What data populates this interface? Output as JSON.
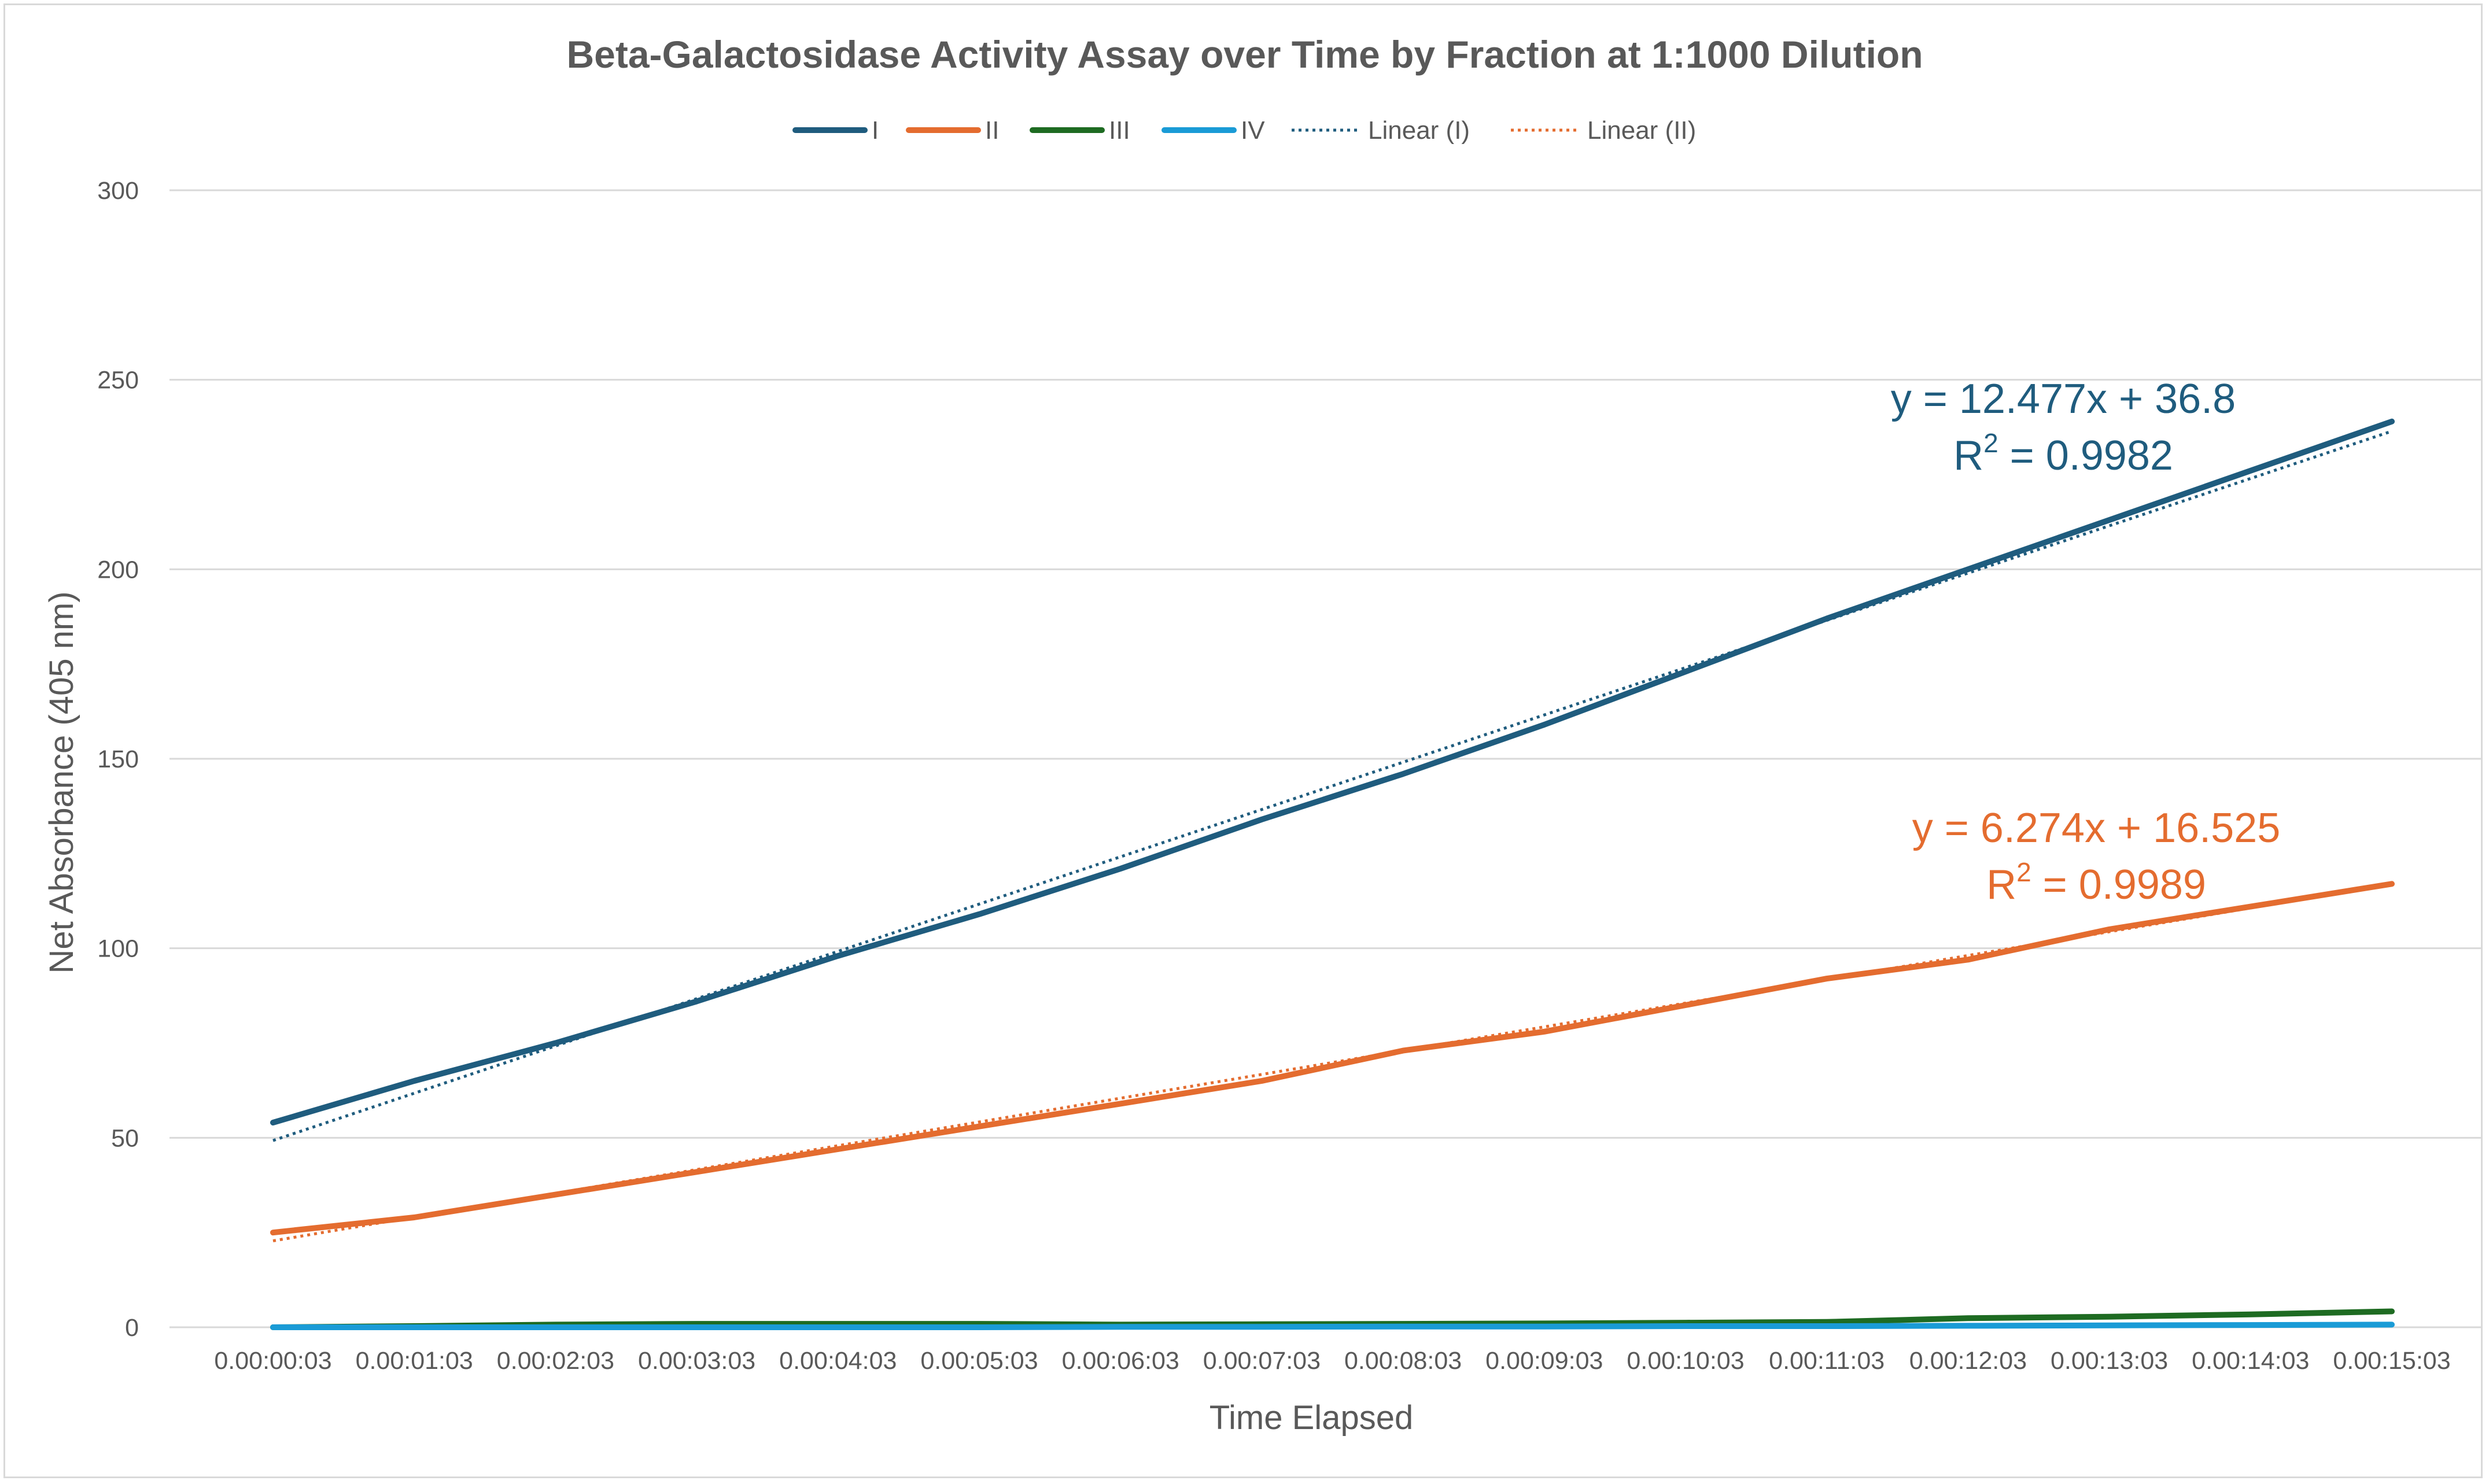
{
  "chart_data": {
    "type": "line",
    "title": "Beta-Galactosidase Activity Assay over Time by Fraction at 1:1000 Dilution",
    "xlabel": "Time Elapsed",
    "ylabel": "Net Absorbance (405 nm)",
    "ylim": [
      0,
      300
    ],
    "yticks": [
      "0",
      "50",
      "100",
      "150",
      "200",
      "250",
      "300"
    ],
    "grid": true,
    "legend_position": "top",
    "categories": [
      "0.00:00:03",
      "0.00:01:03",
      "0.00:02:03",
      "0.00:03:03",
      "0.00:04:03",
      "0.00:05:03",
      "0.00:06:03",
      "0.00:07:03",
      "0.00:08:03",
      "0.00:09:03",
      "0.00:10:03",
      "0.00:11:03",
      "0.00:12:03",
      "0.00:13:03",
      "0.00:14:03",
      "0.00:15:03"
    ],
    "series": [
      {
        "name": "I",
        "color": "#1f5c7e",
        "values": [
          54,
          65,
          75,
          86,
          98,
          109,
          121,
          134,
          146,
          159,
          173,
          187,
          200,
          213,
          226,
          239
        ]
      },
      {
        "name": "II",
        "color": "#e46c2f",
        "values": [
          25,
          29,
          35,
          41,
          47,
          53,
          59,
          65,
          73,
          78,
          85,
          92,
          97,
          105,
          111,
          117
        ]
      },
      {
        "name": "III",
        "color": "#1e6b22",
        "values": [
          0,
          0.3,
          0.7,
          0.9,
          0.9,
          0.9,
          0.7,
          0.8,
          0.9,
          1.0,
          1.2,
          1.4,
          2.4,
          2.8,
          3.4,
          4.2
        ]
      },
      {
        "name": "IV",
        "color": "#1a9bd6",
        "values": [
          0,
          0,
          0,
          0,
          0,
          0,
          0.1,
          0.1,
          0.2,
          0.2,
          0.3,
          0.3,
          0.4,
          0.5,
          0.6,
          0.7
        ]
      }
    ],
    "trendlines": [
      {
        "name": "Linear (I)",
        "series": "I",
        "color": "#1f5c7e",
        "slope": 12.477,
        "intercept": 36.8,
        "equation": "y = 12.477x + 36.8",
        "r2_label": "R",
        "r2_value": " = 0.9982"
      },
      {
        "name": "Linear (II)",
        "series": "II",
        "color": "#e46c2f",
        "slope": 6.274,
        "intercept": 16.525,
        "equation": "y = 6.274x + 16.525",
        "r2_label": "R",
        "r2_value": " = 0.9989"
      }
    ],
    "r2_superscript": "2"
  }
}
